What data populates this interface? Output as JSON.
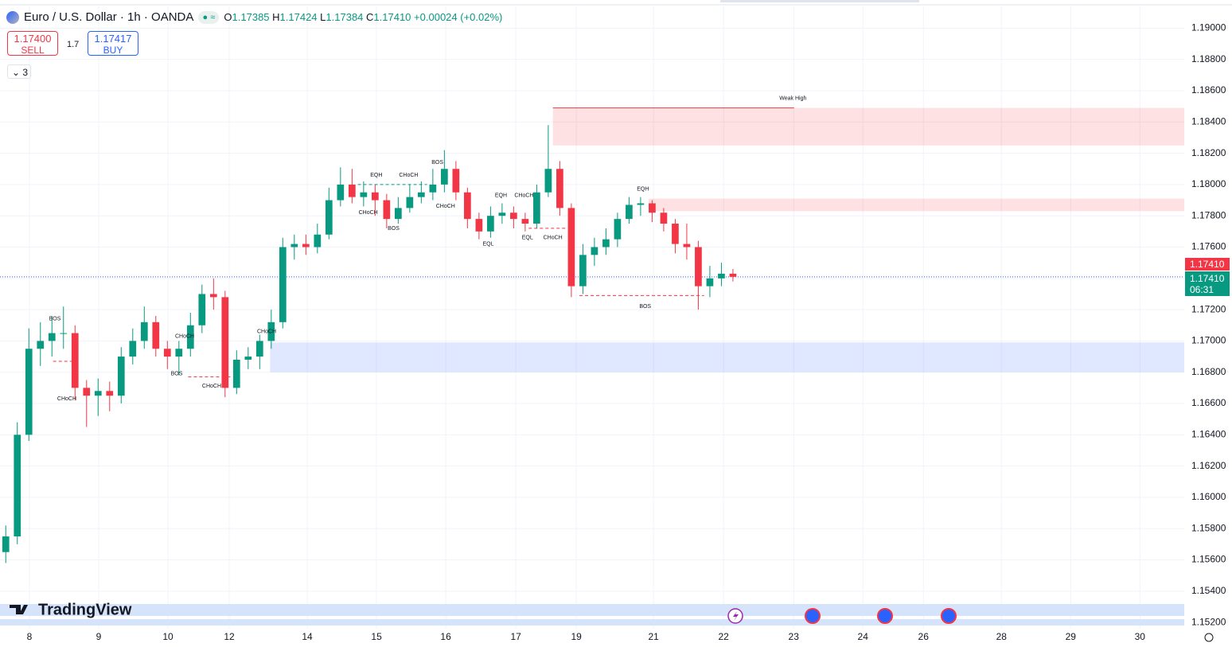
{
  "header": {
    "symbol": "Euro / U.S. Dollar · 1h · OANDA",
    "o_label": "O",
    "open": "1.17385",
    "h_label": "H",
    "high": "1.17424",
    "l_label": "L",
    "low": "1.17384",
    "c_label": "C",
    "close": "1.17410",
    "change": "+0.00024 (+0.02%)"
  },
  "trade": {
    "sell_price": "1.17400",
    "sell_label": "SELL",
    "spread": "1.7",
    "buy_price": "1.17417",
    "buy_label": "BUY"
  },
  "indicators_count": "3",
  "price_tags": {
    "last": "1.17410",
    "bid": "1.17410",
    "countdown": "06:31"
  },
  "brand": "TradingView",
  "chart_data": {
    "type": "candlestick",
    "open": [
      1.1565,
      1.1575,
      1.164,
      1.1695,
      1.17,
      1.1705,
      1.1705,
      1.167,
      1.1665,
      1.1668,
      1.1665,
      1.169,
      1.17,
      1.1712,
      1.1695,
      1.169,
      1.1695,
      1.171,
      1.173,
      1.1728,
      1.167,
      1.1688,
      1.169,
      1.17,
      1.1712,
      1.176,
      1.1762,
      1.176,
      1.1768,
      1.179,
      1.18,
      1.1792,
      1.1795,
      1.179,
      1.1778,
      1.1785,
      1.1792,
      1.1795,
      1.18,
      1.181,
      1.1795,
      1.1778,
      1.177,
      1.178,
      1.1782,
      1.1778,
      1.1775,
      1.1795,
      1.181,
      1.1785,
      1.1735,
      1.1755,
      1.176,
      1.1765,
      1.1778,
      1.1787,
      1.1788,
      1.1782,
      1.1775,
      1.1762,
      1.176,
      1.1735,
      1.174,
      1.1743
    ],
    "high": [
      1.1582,
      1.1648,
      1.1708,
      1.1712,
      1.1716,
      1.1722,
      1.171,
      1.1675,
      1.1676,
      1.1674,
      1.1696,
      1.1708,
      1.1722,
      1.1716,
      1.17,
      1.17,
      1.1718,
      1.1736,
      1.174,
      1.1732,
      1.1694,
      1.1696,
      1.1704,
      1.172,
      1.1766,
      1.1768,
      1.1768,
      1.1775,
      1.1798,
      1.1811,
      1.181,
      1.1802,
      1.18,
      1.1794,
      1.1792,
      1.18,
      1.1802,
      1.181,
      1.1822,
      1.1815,
      1.1798,
      1.1782,
      1.1786,
      1.1788,
      1.1786,
      1.1782,
      1.18,
      1.1838,
      1.1815,
      1.1788,
      1.1762,
      1.1766,
      1.1772,
      1.1782,
      1.1792,
      1.1792,
      1.179,
      1.1785,
      1.1778,
      1.1775,
      1.1764,
      1.1748,
      1.175,
      1.1746
    ],
    "low": [
      1.1558,
      1.157,
      1.1636,
      1.1684,
      1.169,
      1.1695,
      1.1662,
      1.1645,
      1.1652,
      1.1655,
      1.166,
      1.1685,
      1.1695,
      1.169,
      1.1682,
      1.1678,
      1.169,
      1.1705,
      1.172,
      1.1664,
      1.1666,
      1.1682,
      1.1682,
      1.1695,
      1.1708,
      1.1752,
      1.1755,
      1.1756,
      1.1765,
      1.1786,
      1.1788,
      1.1786,
      1.178,
      1.1772,
      1.1775,
      1.1782,
      1.1788,
      1.179,
      1.1795,
      1.179,
      1.1772,
      1.1765,
      1.1766,
      1.1775,
      1.1772,
      1.177,
      1.1772,
      1.1792,
      1.178,
      1.1728,
      1.173,
      1.1748,
      1.1755,
      1.176,
      1.1775,
      1.178,
      1.1776,
      1.177,
      1.1756,
      1.1752,
      1.172,
      1.1728,
      1.1735,
      1.1738
    ],
    "close": [
      1.1575,
      1.164,
      1.1695,
      1.17,
      1.1705,
      1.1705,
      1.167,
      1.1665,
      1.1668,
      1.1665,
      1.169,
      1.17,
      1.1712,
      1.1695,
      1.169,
      1.1695,
      1.171,
      1.173,
      1.1728,
      1.167,
      1.1688,
      1.169,
      1.17,
      1.1712,
      1.176,
      1.1762,
      1.176,
      1.1768,
      1.179,
      1.18,
      1.1792,
      1.1795,
      1.179,
      1.1778,
      1.1785,
      1.1792,
      1.1795,
      1.18,
      1.181,
      1.1795,
      1.1778,
      1.177,
      1.178,
      1.1782,
      1.1778,
      1.1775,
      1.1795,
      1.181,
      1.1785,
      1.1735,
      1.1755,
      1.176,
      1.1765,
      1.1778,
      1.1787,
      1.1788,
      1.1782,
      1.1775,
      1.1762,
      1.176,
      1.1735,
      1.174,
      1.1743,
      1.1741
    ],
    "up_color": "#089981",
    "down_color": "#f23645",
    "xlim": [
      0,
      102.6
    ],
    "ylim": [
      1.1516,
      1.1918
    ],
    "xticks": [
      {
        "value": 2.55,
        "label": "8"
      },
      {
        "value": 8.55,
        "label": "9"
      },
      {
        "value": 14.55,
        "label": "10"
      },
      {
        "value": 19.86,
        "label": "12"
      },
      {
        "value": 26.62,
        "label": "14"
      },
      {
        "value": 32.62,
        "label": "15"
      },
      {
        "value": 38.62,
        "label": "16"
      },
      {
        "value": 44.69,
        "label": "17"
      },
      {
        "value": 49.93,
        "label": "19"
      },
      {
        "value": 56.62,
        "label": "21"
      },
      {
        "value": 62.69,
        "label": "22"
      },
      {
        "value": 68.76,
        "label": "23"
      },
      {
        "value": 74.76,
        "label": "24"
      },
      {
        "value": 80,
        "label": "26"
      },
      {
        "value": 86.76,
        "label": "28"
      },
      {
        "value": 92.76,
        "label": "29"
      },
      {
        "value": 98.76,
        "label": "30"
      }
    ],
    "yticks": [
      {
        "value": 1.19,
        "label": "1.19000"
      },
      {
        "value": 1.188,
        "label": "1.18800"
      },
      {
        "value": 1.186,
        "label": "1.18600"
      },
      {
        "value": 1.184,
        "label": "1.18400"
      },
      {
        "value": 1.182,
        "label": "1.18200"
      },
      {
        "value": 1.18,
        "label": "1.18000"
      },
      {
        "value": 1.178,
        "label": "1.17800"
      },
      {
        "value": 1.176,
        "label": "1.17600"
      },
      {
        "value": 1.174,
        "label": "1.17400"
      },
      {
        "value": 1.172,
        "label": "1.17200"
      },
      {
        "value": 1.17,
        "label": "1.17000"
      },
      {
        "value": 1.168,
        "label": "1.16800"
      },
      {
        "value": 1.166,
        "label": "1.16600"
      },
      {
        "value": 1.164,
        "label": "1.16400"
      },
      {
        "value": 1.162,
        "label": "1.16200"
      },
      {
        "value": 1.16,
        "label": "1.16000"
      },
      {
        "value": 1.158,
        "label": "1.15800"
      },
      {
        "value": 1.156,
        "label": "1.15600"
      },
      {
        "value": 1.154,
        "label": "1.15400"
      },
      {
        "value": 1.152,
        "label": "1.15200"
      }
    ],
    "grid": true,
    "last_price": 1.1741,
    "zones": [
      {
        "from": 47.9,
        "top": 1.1849,
        "bottom": 1.1825,
        "color": "#f23645"
      },
      {
        "from": 56.2,
        "top": 1.1791,
        "bottom": 1.1783,
        "color": "#f23645"
      },
      {
        "from": 23.4,
        "top": 1.1699,
        "bottom": 1.168,
        "color": "#2962ff"
      }
    ],
    "levels": [
      {
        "price": 1.1849,
        "from": 47.9,
        "to": 68.8,
        "color": "#f23645"
      },
      {
        "price": 1.1729,
        "from": 50.2,
        "to": 61.0,
        "color": "#f23645"
      },
      {
        "price": 1.1687,
        "from": 4.6,
        "to": 6.6,
        "color": "#f23645"
      },
      {
        "price": 1.1677,
        "from": 16.3,
        "to": 20.0,
        "color": "#f23645"
      },
      {
        "price": 1.18,
        "from": 31.0,
        "to": 37.0,
        "color": "#089981"
      },
      {
        "price": 1.1772,
        "from": 45.8,
        "to": 49.0,
        "color": "#f23645"
      }
    ],
    "annotations": [
      {
        "text": "BOS",
        "x": 4.76,
        "price": 1.1714,
        "color": "#089981"
      },
      {
        "text": "CHoCH",
        "x": 5.79,
        "price": 1.1663,
        "color": "#f23645"
      },
      {
        "text": "BOS",
        "x": 15.31,
        "price": 1.1679,
        "color": "#f23645"
      },
      {
        "text": "CHoCH",
        "x": 16.0,
        "price": 1.1703,
        "color": "#089981"
      },
      {
        "text": "CHoCH",
        "x": 18.34,
        "price": 1.1671,
        "color": "#f23645"
      },
      {
        "text": "CHoCH",
        "x": 23.1,
        "price": 1.1706,
        "color": "#089981"
      },
      {
        "text": "EQH",
        "x": 32.6,
        "price": 1.1806,
        "color": "#f23645"
      },
      {
        "text": "CHoCH",
        "x": 35.4,
        "price": 1.1806,
        "color": "#089981"
      },
      {
        "text": "BOS",
        "x": 37.9,
        "price": 1.1814,
        "color": "#089981"
      },
      {
        "text": "CHoCH",
        "x": 31.9,
        "price": 1.1782,
        "color": "#f23645"
      },
      {
        "text": "BOS",
        "x": 34.1,
        "price": 1.1772,
        "color": "#f23645"
      },
      {
        "text": "CHoCH",
        "x": 38.6,
        "price": 1.1786,
        "color": "#f23645"
      },
      {
        "text": "EQH",
        "x": 43.4,
        "price": 1.1793,
        "color": "#f23645"
      },
      {
        "text": "CHoCH",
        "x": 45.4,
        "price": 1.1793,
        "color": "#089981"
      },
      {
        "text": "EQL",
        "x": 42.3,
        "price": 1.1762,
        "color": "#089981"
      },
      {
        "text": "EQL",
        "x": 45.7,
        "price": 1.1766,
        "color": "#089981"
      },
      {
        "text": "CHoCH",
        "x": 47.9,
        "price": 1.1766,
        "color": "#f23645"
      },
      {
        "text": "EQH",
        "x": 55.7,
        "price": 1.1797,
        "color": "#f23645"
      },
      {
        "text": "BOS",
        "x": 55.9,
        "price": 1.1722,
        "color": "#f23645"
      },
      {
        "text": "Weak High",
        "x": 68.7,
        "price": 1.1855,
        "color": "#f23645"
      }
    ]
  }
}
